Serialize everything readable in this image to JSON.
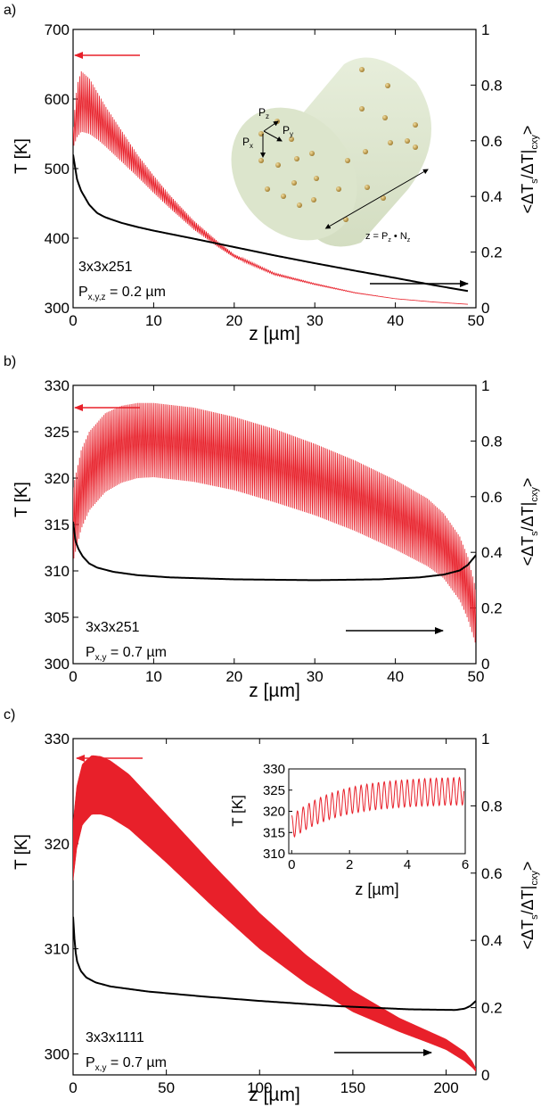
{
  "chart_data": [
    {
      "type": "line",
      "panel_label": "a)",
      "xlabel": "z [µm]",
      "ylabel_left": "T [K]",
      "ylabel_right": "<ΔT_s/ΔT|_cxy>",
      "xlim": [
        0,
        50
      ],
      "ylim_left": [
        300,
        700
      ],
      "ylim_right": [
        0,
        1
      ],
      "xticks": [
        0,
        10,
        20,
        30,
        40,
        50
      ],
      "yticks_left": [
        300,
        400,
        500,
        600,
        700
      ],
      "yticks_right": [
        0,
        0.2,
        0.4,
        0.6,
        0.8,
        1
      ],
      "xtick_labels": [
        "0",
        "10",
        "20",
        "30",
        "40",
        "50"
      ],
      "ytick_labels_left": [
        "300",
        "400",
        "500",
        "600",
        "700"
      ],
      "ytick_labels_right": [
        "0",
        "0.2",
        "0.4",
        "0.6",
        "0.8",
        "1"
      ],
      "annotations": [
        "3x3x251",
        "P",
        "x,y,z",
        " = 0.2 µm"
      ],
      "inset_labels": [
        "P",
        "z",
        "P",
        "y",
        "P",
        "x",
        "z = P",
        "z",
        " • N",
        "z"
      ],
      "colors": {
        "temperature": "#e8202a",
        "ratio": "#000000",
        "cylinder": "#dde6cf",
        "particle": "#c8a040"
      },
      "series": [
        {
          "axis": "left",
          "color": "#e8202a",
          "style": "oscillating band",
          "x": [
            0,
            0.5,
            1,
            2,
            3,
            4,
            6,
            8,
            10,
            12,
            15,
            18,
            20,
            25,
            30,
            35,
            40,
            45,
            49
          ],
          "upper": [
            560,
            620,
            640,
            630,
            610,
            590,
            555,
            520,
            490,
            462,
            425,
            395,
            377,
            350,
            335,
            322,
            313,
            308,
            305
          ],
          "lower": [
            530,
            545,
            553,
            550,
            542,
            532,
            510,
            488,
            465,
            443,
            412,
            387,
            372,
            347,
            333,
            321,
            313,
            308,
            305
          ]
        },
        {
          "axis": "right",
          "color": "#000000",
          "x": [
            0,
            0.5,
            1,
            2,
            3,
            4,
            6,
            8,
            10,
            15,
            20,
            25,
            30,
            35,
            40,
            45,
            49
          ],
          "values": [
            0.55,
            0.46,
            0.42,
            0.37,
            0.34,
            0.325,
            0.305,
            0.29,
            0.277,
            0.248,
            0.218,
            0.188,
            0.16,
            0.133,
            0.107,
            0.08,
            0.06
          ]
        }
      ]
    },
    {
      "type": "line",
      "panel_label": "b)",
      "xlabel": "z [µm]",
      "ylabel_left": "T [K]",
      "ylabel_right": "<ΔT_s/ΔT|_cxy>",
      "xlim": [
        0,
        50
      ],
      "ylim_left": [
        300,
        330
      ],
      "ylim_right": [
        0,
        1
      ],
      "xticks": [
        0,
        10,
        20,
        30,
        40,
        50
      ],
      "yticks_left": [
        300,
        305,
        310,
        315,
        320,
        325,
        330
      ],
      "yticks_right": [
        0,
        0.2,
        0.4,
        0.6,
        0.8,
        1
      ],
      "xtick_labels": [
        "0",
        "10",
        "20",
        "30",
        "40",
        "50"
      ],
      "ytick_labels_left": [
        "300",
        "305",
        "310",
        "315",
        "320",
        "325",
        "330"
      ],
      "ytick_labels_right": [
        "0",
        "0.2",
        "0.4",
        "0.6",
        "0.8",
        "1"
      ],
      "annotations": [
        "3x3x251",
        "P",
        "x,y",
        " = 0.7 µm"
      ],
      "colors": {
        "temperature": "#e8202a",
        "ratio": "#000000"
      },
      "series": [
        {
          "axis": "left",
          "color": "#e8202a",
          "style": "oscillating band",
          "x": [
            0,
            1,
            2,
            4,
            6,
            8,
            10,
            15,
            20,
            25,
            30,
            35,
            40,
            44,
            46,
            48,
            49,
            50
          ],
          "upper": [
            319,
            323,
            325,
            327,
            327.8,
            328.1,
            328.1,
            327.6,
            326.6,
            325.3,
            323.7,
            321.9,
            319.8,
            317.8,
            316.2,
            313.7,
            311.5,
            308
          ],
          "lower": [
            311,
            314.5,
            316.5,
            318.5,
            319.5,
            320,
            320.1,
            319.6,
            318.7,
            317.4,
            316,
            314.3,
            312.3,
            310.5,
            309.2,
            306.8,
            304.8,
            302
          ]
        },
        {
          "axis": "right",
          "color": "#000000",
          "x": [
            0,
            0.3,
            0.7,
            1.2,
            2,
            3,
            5,
            8,
            12,
            20,
            30,
            38,
            43,
            46,
            48,
            49,
            50
          ],
          "values": [
            0.51,
            0.44,
            0.41,
            0.385,
            0.36,
            0.345,
            0.33,
            0.318,
            0.31,
            0.303,
            0.3,
            0.303,
            0.31,
            0.32,
            0.335,
            0.355,
            0.39
          ]
        }
      ]
    },
    {
      "type": "line",
      "panel_label": "c)",
      "xlabel": "z [µm]",
      "ylabel_left": "T [K]",
      "ylabel_right": "<ΔT_s/ΔT|_cxy>",
      "xlim": [
        0,
        216
      ],
      "ylim_left": [
        298,
        330
      ],
      "ylim_right": [
        0,
        1
      ],
      "xticks": [
        0,
        50,
        100,
        150,
        200
      ],
      "yticks_left": [
        300,
        310,
        320,
        330
      ],
      "yticks_right": [
        0,
        0.2,
        0.4,
        0.6,
        0.8,
        1
      ],
      "xtick_labels": [
        "0",
        "50",
        "100",
        "150",
        "200"
      ],
      "ytick_labels_left": [
        "300",
        "310",
        "320",
        "330"
      ],
      "ytick_labels_right": [
        "0",
        "0.2",
        "0.4",
        "0.6",
        "0.8",
        "1"
      ],
      "annotations": [
        "3x3x1111",
        "P",
        "x,y",
        " = 0.7 µm"
      ],
      "colors": {
        "temperature": "#e8202a",
        "ratio": "#000000"
      },
      "series": [
        {
          "axis": "left",
          "color": "#e8202a",
          "style": "filled band",
          "x": [
            0,
            2,
            5,
            10,
            15,
            20,
            30,
            50,
            75,
            100,
            125,
            150,
            175,
            190,
            200,
            210,
            214,
            216
          ],
          "upper": [
            322,
            325.5,
            327.6,
            328.4,
            328.3,
            327.9,
            326.6,
            322.8,
            318,
            313.4,
            309.4,
            306,
            303.4,
            302.2,
            301.4,
            300.2,
            299.3,
            298.6
          ],
          "lower": [
            316.5,
            319.6,
            321.8,
            322.8,
            322.8,
            322.5,
            321.4,
            318.2,
            314,
            310,
            306.7,
            304,
            302.1,
            301.1,
            300.4,
            299.3,
            298.7,
            298.3
          ]
        },
        {
          "axis": "right",
          "color": "#000000",
          "x": [
            0,
            1,
            2,
            4,
            7,
            12,
            20,
            40,
            70,
            100,
            140,
            180,
            205,
            210,
            213,
            216
          ],
          "values": [
            0.47,
            0.38,
            0.34,
            0.31,
            0.29,
            0.275,
            0.263,
            0.248,
            0.233,
            0.22,
            0.205,
            0.195,
            0.193,
            0.197,
            0.205,
            0.22
          ]
        }
      ],
      "inset": {
        "type": "line",
        "xlabel": "z [µm]",
        "ylabel": "T [K]",
        "xlim": [
          -0.1,
          6
        ],
        "ylim": [
          310,
          330
        ],
        "xticks": [
          0,
          2,
          4,
          6
        ],
        "yticks": [
          310,
          315,
          320,
          325,
          330
        ],
        "xtick_labels": [
          "0",
          "2",
          "4",
          "6"
        ],
        "ytick_labels": [
          "310",
          "315",
          "320",
          "325",
          "330"
        ],
        "oscillation": {
          "period": 0.2,
          "start_max": 319,
          "start_min": 313.5,
          "end_max": 328,
          "end_min": 321.5
        },
        "color": "#e8202a"
      }
    }
  ]
}
